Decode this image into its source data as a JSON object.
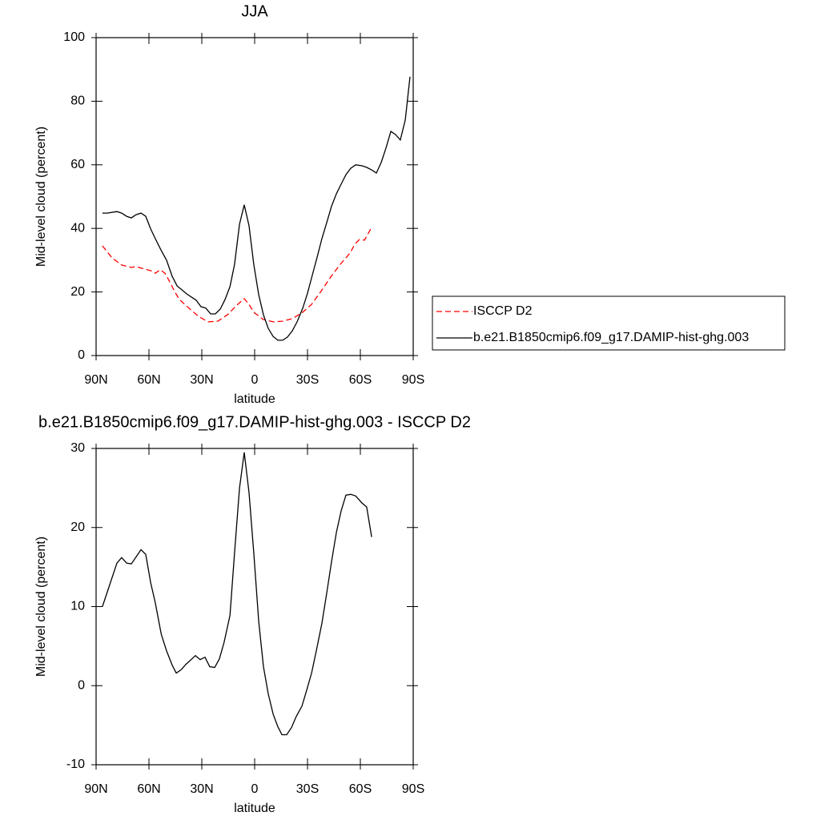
{
  "chart_data": [
    {
      "type": "line",
      "title": "JJA",
      "xlabel": "latitude",
      "ylabel": "Mid-level cloud (percent)",
      "xlim": [
        90,
        -90
      ],
      "xticks": [
        {
          "value": 90,
          "label": "90N"
        },
        {
          "value": 60,
          "label": "60N"
        },
        {
          "value": 30,
          "label": "30N"
        },
        0,
        {
          "value": -30,
          "label": "30S"
        },
        {
          "value": -60,
          "label": "60S"
        },
        {
          "value": -90,
          "label": "90S"
        }
      ],
      "ylim": [
        0,
        100
      ],
      "yticks": [
        0,
        20,
        40,
        60,
        80,
        100
      ],
      "legend": "right",
      "series": [
        {
          "name": "ISCCP D2",
          "color": "#ff0000",
          "line_style": "dashed",
          "x": [
            86.4,
            80.9,
            75.5,
            70,
            67.3,
            64.5,
            59,
            56.4,
            53.6,
            50.9,
            48.2,
            45.5,
            42.7,
            37.3,
            31.8,
            26.4,
            20.9,
            15.5,
            10,
            5.9,
            3.2,
            0.5,
            -5,
            -10.5,
            -15.9,
            -21.4,
            -26.8,
            -32.3,
            -37.7,
            -43.2,
            -48.6,
            -54.1,
            -56.8,
            -59.5,
            -62.3,
            -66.4
          ],
          "values": [
            34.5,
            30.7,
            28.5,
            27.7,
            28,
            27.5,
            26.7,
            25.9,
            27,
            25.9,
            23.2,
            20.2,
            17.6,
            14.9,
            12.3,
            10.6,
            10.8,
            12.8,
            15.9,
            17.9,
            16.1,
            13.6,
            11.3,
            10.6,
            10.8,
            11.6,
            13.4,
            16.1,
            20.2,
            24.7,
            28.7,
            32.2,
            35,
            36.5,
            36.3,
            40.3
          ]
        },
        {
          "name": "b.e21.B1850cmip6.f09_g17.DAMIP-hist-ghg.003",
          "color": "#000000",
          "line_style": "solid",
          "x": [
            86.4,
            83.6,
            78.2,
            75.5,
            72.7,
            70,
            67.3,
            64.5,
            61.8,
            59,
            56.4,
            53.2,
            50,
            46.8,
            44,
            41.4,
            38.6,
            33.2,
            30.5,
            27.7,
            25,
            22.3,
            19.5,
            16.8,
            14,
            11.4,
            8.6,
            5.9,
            3.2,
            0.5,
            -2.3,
            -5,
            -7.7,
            -10.5,
            -13.2,
            -15.9,
            -18.6,
            -21.4,
            -24.1,
            -27.3,
            -30,
            -32.7,
            -35.5,
            -38.2,
            -40.9,
            -43.6,
            -46.4,
            -49.1,
            -51.8,
            -54.5,
            -57.3,
            -60.9,
            -63.6,
            -66.4,
            -69.1,
            -71.8,
            -74.5,
            -77.3,
            -80,
            -82.7,
            -85.5,
            -88.2
          ],
          "values": [
            44.8,
            44.8,
            45.3,
            44.8,
            43.8,
            43.3,
            44.3,
            44.8,
            43.8,
            39.8,
            36.8,
            33.2,
            30,
            24.9,
            21.9,
            20.7,
            19.4,
            17.4,
            15.4,
            14.9,
            13.1,
            13.1,
            14.6,
            17.6,
            21.7,
            28.7,
            41.3,
            47.4,
            40.8,
            28.7,
            19.1,
            12.8,
            8.6,
            6,
            4.8,
            4.8,
            5.8,
            7.8,
            10.6,
            14.9,
            19.6,
            25.2,
            31,
            36.8,
            41.8,
            46.9,
            50.9,
            53.9,
            56.9,
            58.9,
            60,
            59.7,
            59.2,
            58.4,
            57.4,
            60.7,
            65.2,
            70.5,
            69.5,
            67.8,
            74.1,
            87.7
          ]
        }
      ]
    },
    {
      "type": "line",
      "title": "b.e21.B1850cmip6.f09_g17.DAMIP-hist-ghg.003 - ISCCP D2",
      "xlabel": "latitude",
      "ylabel": "Mid-level cloud (percent)",
      "xlim": [
        90,
        -90
      ],
      "xticks": [
        {
          "value": 90,
          "label": "90N"
        },
        {
          "value": 60,
          "label": "60N"
        },
        {
          "value": 30,
          "label": "30N"
        },
        0,
        {
          "value": -30,
          "label": "30S"
        },
        {
          "value": -60,
          "label": "60S"
        },
        {
          "value": -90,
          "label": "90S"
        }
      ],
      "ylim": [
        -10,
        30
      ],
      "yticks": [
        -10,
        0,
        10,
        20,
        30
      ],
      "legend": false,
      "series": [
        {
          "color": "#000000",
          "line_style": "solid",
          "x": [
            86.4,
            78.2,
            75.5,
            72.7,
            70,
            64.5,
            61.8,
            59,
            56.4,
            53,
            50,
            46.8,
            44.5,
            41.8,
            39,
            33.6,
            30.9,
            28.2,
            25.5,
            22.7,
            20,
            17.3,
            14,
            11.4,
            8.6,
            5.9,
            3.2,
            0.5,
            -2.3,
            -5,
            -7.7,
            -10.5,
            -13.2,
            -15.5,
            -18.2,
            -20.9,
            -23.6,
            -26.8,
            -29.5,
            -32.3,
            -35,
            -38.2,
            -40.9,
            -43.6,
            -46.4,
            -49.1,
            -51.8,
            -54.5,
            -57.3,
            -60.9,
            -63.6,
            -66.4
          ],
          "values": [
            10,
            15.5,
            16.2,
            15.5,
            15.4,
            17.2,
            16.6,
            13,
            10.5,
            6.5,
            4.4,
            2.6,
            1.6,
            2,
            2.7,
            3.8,
            3.3,
            3.6,
            2.4,
            2.3,
            3.4,
            5.5,
            8.9,
            16.8,
            25,
            29.5,
            24.4,
            16.8,
            8.1,
            2.4,
            -1,
            -3.6,
            -5.2,
            -6.2,
            -6.2,
            -5.3,
            -3.9,
            -2.6,
            -0.6,
            1.6,
            4.4,
            7.9,
            11.7,
            15.6,
            19.4,
            22.1,
            24.1,
            24.2,
            24,
            23.1,
            22.6,
            18.8
          ]
        }
      ]
    }
  ]
}
